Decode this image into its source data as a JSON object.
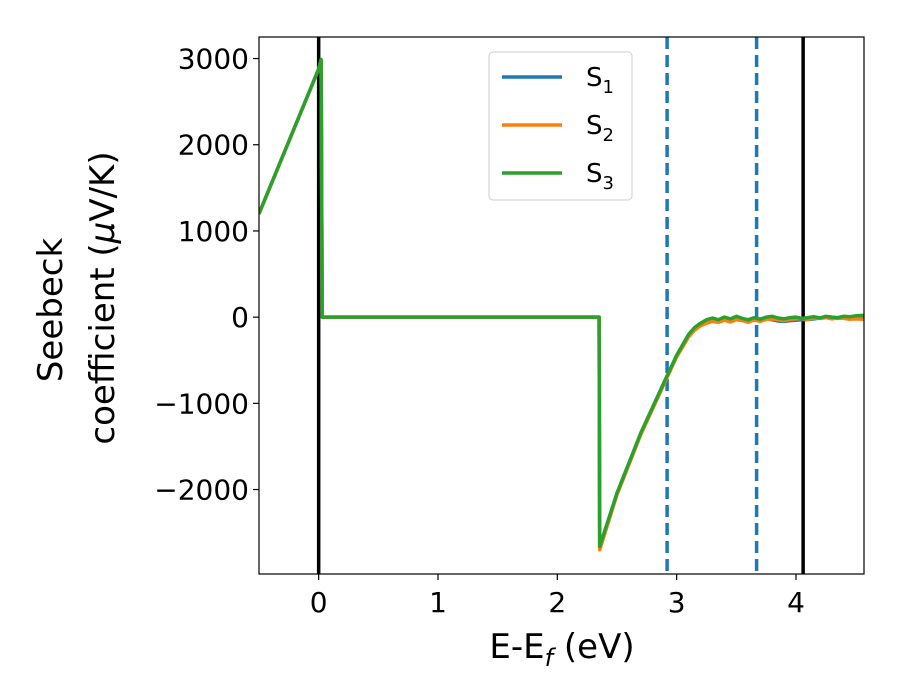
{
  "chart_data": {
    "type": "line",
    "xlabel": {
      "main": "E-E",
      "sub": "f",
      "suffix": " (eV)"
    },
    "ylabel": {
      "line1": "Seebeck",
      "line2_pre": "coefficient  (",
      "mu": "μ",
      "line2_post": "V/K)"
    },
    "xlim": [
      -0.5,
      4.57
    ],
    "ylim": [
      -2980,
      3250
    ],
    "xticks": [
      {
        "value": 0,
        "label": "0"
      },
      {
        "value": 1,
        "label": "1"
      },
      {
        "value": 2,
        "label": "2"
      },
      {
        "value": 3,
        "label": "3"
      },
      {
        "value": 4,
        "label": "4"
      }
    ],
    "yticks": [
      {
        "value": 3000,
        "label": "3000"
      },
      {
        "value": 2000,
        "label": "2000"
      },
      {
        "value": 1000,
        "label": "1000"
      },
      {
        "value": 0,
        "label": "0"
      },
      {
        "value": -1000,
        "label": "−1000"
      },
      {
        "value": -2000,
        "label": "−2000"
      }
    ],
    "legend_placement": "upper-center",
    "series": [
      {
        "name": "S",
        "sub": "1",
        "color": "#1f77b4",
        "x": [
          -0.5,
          0.0,
          0.02,
          0.03,
          2.35,
          2.355,
          2.5,
          2.7,
          2.9,
          3.0,
          3.1,
          3.15,
          3.2,
          3.25,
          3.3,
          3.35,
          3.4,
          3.45,
          3.5,
          3.55,
          3.6,
          3.65,
          3.7,
          3.75,
          3.8,
          3.85,
          3.9,
          3.95,
          4.0,
          4.05,
          4.1,
          4.15,
          4.2,
          4.25,
          4.3,
          4.35,
          4.4,
          4.45,
          4.5,
          4.57
        ],
        "y": [
          1200,
          2880,
          2980,
          0,
          0,
          -2680,
          -2050,
          -1350,
          -750,
          -450,
          -220,
          -140,
          -90,
          -60,
          -45,
          -40,
          -30,
          -35,
          -25,
          -30,
          -40,
          -35,
          -20,
          -15,
          -30,
          -45,
          -50,
          -40,
          -35,
          -30,
          -28,
          -20,
          -10,
          -5,
          -10,
          -15,
          -5,
          0,
          5,
          10
        ]
      },
      {
        "name": "S",
        "sub": "2",
        "color": "#ff7f0e",
        "x": [
          -0.5,
          0.0,
          0.02,
          0.03,
          2.35,
          2.355,
          2.5,
          2.7,
          2.9,
          3.0,
          3.1,
          3.15,
          3.2,
          3.25,
          3.3,
          3.35,
          3.4,
          3.45,
          3.5,
          3.55,
          3.6,
          3.65,
          3.7,
          3.75,
          3.8,
          3.85,
          3.9,
          3.95,
          4.0,
          4.05,
          4.1,
          4.15,
          4.2,
          4.25,
          4.3,
          4.35,
          4.4,
          4.45,
          4.5,
          4.57
        ],
        "y": [
          1200,
          2880,
          2980,
          0,
          0,
          -2700,
          -2060,
          -1360,
          -760,
          -460,
          -230,
          -150,
          -100,
          -70,
          -50,
          -60,
          -35,
          -55,
          -30,
          -40,
          -60,
          -30,
          -50,
          -25,
          -20,
          -30,
          -40,
          -25,
          -20,
          -15,
          -25,
          -10,
          -15,
          -5,
          -20,
          -10,
          -15,
          -25,
          -20,
          -25
        ]
      },
      {
        "name": "S",
        "sub": "3",
        "color": "#2ca02c",
        "x": [
          -0.5,
          0.0,
          0.02,
          0.03,
          2.35,
          2.355,
          2.5,
          2.7,
          2.9,
          3.0,
          3.1,
          3.15,
          3.2,
          3.25,
          3.3,
          3.35,
          3.4,
          3.45,
          3.5,
          3.55,
          3.6,
          3.65,
          3.7,
          3.75,
          3.8,
          3.85,
          3.9,
          3.95,
          4.0,
          4.05,
          4.1,
          4.15,
          4.2,
          4.25,
          4.3,
          4.35,
          4.4,
          4.45,
          4.5,
          4.57
        ],
        "y": [
          1200,
          2880,
          2990,
          0,
          0,
          -2660,
          -2040,
          -1340,
          -740,
          -440,
          -200,
          -120,
          -70,
          -30,
          -10,
          -30,
          0,
          -20,
          10,
          -15,
          -30,
          -5,
          -25,
          0,
          10,
          -10,
          -20,
          -5,
          0,
          -15,
          -5,
          5,
          -10,
          10,
          0,
          -5,
          10,
          5,
          15,
          20
        ]
      }
    ],
    "vlines": [
      {
        "x": 0.0,
        "color": "#000000",
        "style": "solid"
      },
      {
        "x": 4.06,
        "color": "#000000",
        "style": "solid"
      },
      {
        "x": 2.92,
        "color": "#1f77b4",
        "style": "dashed"
      },
      {
        "x": 3.67,
        "color": "#1f77b4",
        "style": "dashed"
      }
    ]
  }
}
